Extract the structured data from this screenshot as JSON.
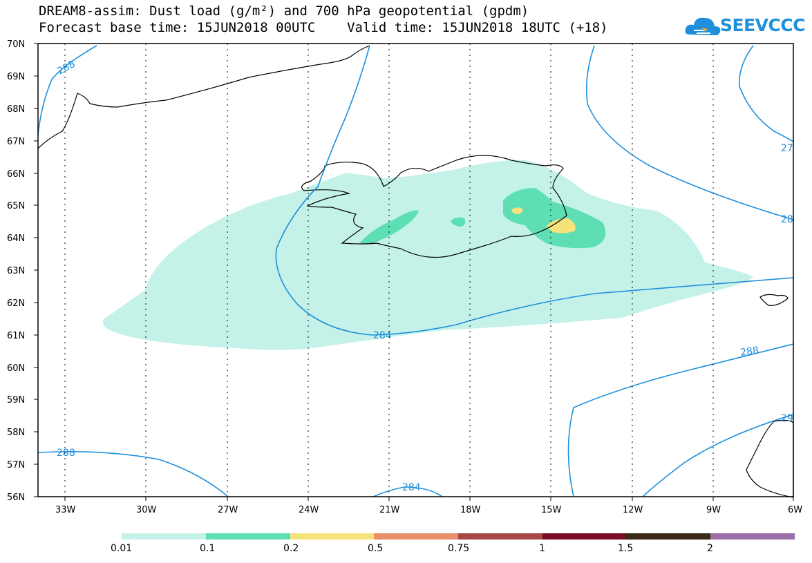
{
  "title_line1": "DREAM8-assim: Dust load (g/m²) and 700 hPa geopotential (gpdm)",
  "title_line2": "Forecast base time: 15JUN2018 00UTC    Valid time: 15JUN2018 18UTC (+18)",
  "logo_text": "SEEVCCC",
  "lat_labels": [
    "70N",
    "69N",
    "68N",
    "67N",
    "66N",
    "65N",
    "64N",
    "63N",
    "62N",
    "61N",
    "60N",
    "59N",
    "58N",
    "57N",
    "56N"
  ],
  "lon_labels": [
    "33W",
    "30W",
    "27W",
    "24W",
    "21W",
    "18W",
    "15W",
    "12W",
    "9W",
    "6W"
  ],
  "contour_labels": [
    "288",
    "27",
    "28",
    "284",
    "288",
    "29",
    "288",
    "284"
  ],
  "colorbar": {
    "labels": [
      "0.01",
      "0.1",
      "0.2",
      "0.5",
      "0.75",
      "1",
      "1.5",
      "2"
    ],
    "colors": [
      "#c4f2e8",
      "#5ddfb3",
      "#f5e27a",
      "#e8906a",
      "#a84848",
      "#780c2a",
      "#3a2a18",
      "#9a6fa8"
    ]
  },
  "colors": {
    "contour": "#1e8fdc",
    "dust_low": "#c4f2e8",
    "dust_mid": "#5ddfb3",
    "dust_high": "#f5e27a"
  }
}
